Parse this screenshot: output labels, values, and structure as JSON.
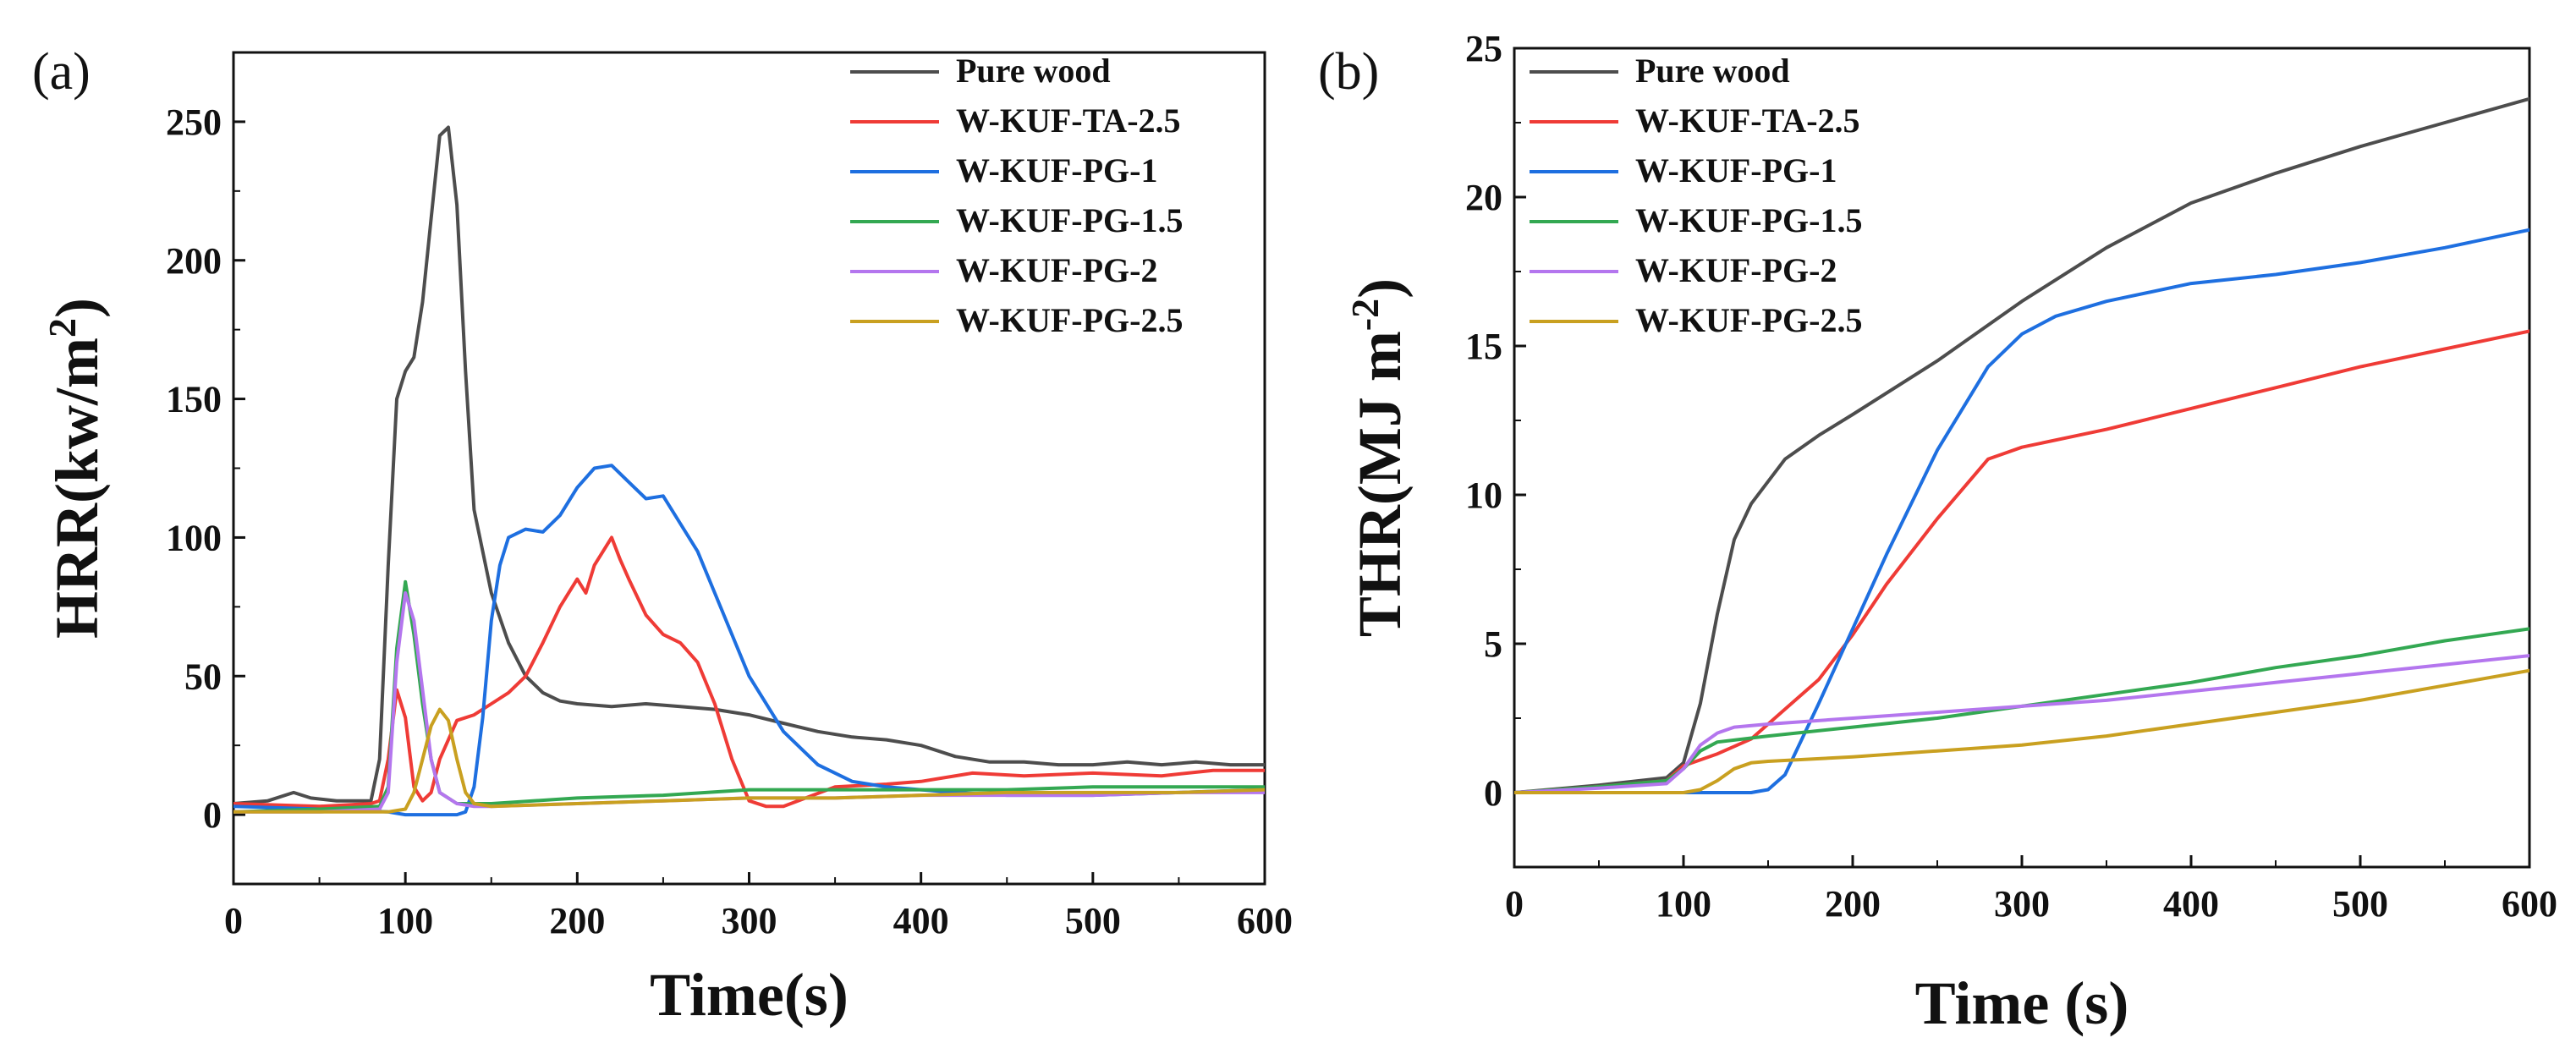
{
  "figure": {
    "panels": [
      "(a)",
      "(b)"
    ]
  },
  "chart_data": [
    {
      "type": "line",
      "panel_label": "(a)",
      "title": "",
      "xlabel": "Time(s)",
      "ylabel": "HRR(kw/m",
      "ylabel_sup": "2",
      "ylabel_end": ")",
      "xlim": [
        0,
        600
      ],
      "ylim": [
        -25,
        275
      ],
      "xticks": [
        0,
        100,
        200,
        300,
        400,
        500,
        600
      ],
      "yticks": [
        0,
        50,
        100,
        150,
        200,
        250
      ],
      "legend_position": "top-right",
      "series": [
        {
          "name": "Pure wood",
          "color": "#4d4d4d",
          "x": [
            0,
            20,
            35,
            45,
            60,
            80,
            85,
            90,
            95,
            100,
            105,
            110,
            115,
            120,
            125,
            130,
            135,
            140,
            150,
            160,
            170,
            180,
            190,
            200,
            220,
            240,
            260,
            280,
            300,
            320,
            340,
            360,
            380,
            400,
            420,
            440,
            460,
            480,
            500,
            520,
            540,
            560,
            580,
            600
          ],
          "y": [
            4,
            5,
            8,
            6,
            5,
            5,
            20,
            90,
            150,
            160,
            165,
            185,
            215,
            245,
            248,
            220,
            160,
            110,
            80,
            62,
            50,
            44,
            41,
            40,
            39,
            40,
            39,
            38,
            36,
            33,
            30,
            28,
            27,
            25,
            21,
            19,
            19,
            18,
            18,
            19,
            18,
            19,
            18,
            18
          ]
        },
        {
          "name": "W-KUF-TA-2.5",
          "color": "#ef3b36",
          "x": [
            0,
            50,
            80,
            85,
            90,
            95,
            100,
            105,
            110,
            115,
            120,
            130,
            140,
            150,
            160,
            170,
            180,
            190,
            200,
            205,
            210,
            215,
            220,
            225,
            230,
            240,
            250,
            260,
            270,
            280,
            290,
            300,
            310,
            320,
            350,
            380,
            400,
            430,
            460,
            500,
            540,
            570,
            600
          ],
          "y": [
            4,
            3,
            4,
            5,
            20,
            45,
            35,
            10,
            5,
            8,
            20,
            34,
            36,
            40,
            44,
            50,
            62,
            75,
            85,
            80,
            90,
            95,
            100,
            92,
            85,
            72,
            65,
            62,
            55,
            40,
            20,
            5,
            3,
            3,
            10,
            11,
            12,
            15,
            14,
            15,
            14,
            16,
            16
          ]
        },
        {
          "name": "W-KUF-PG-1",
          "color": "#1e6fe0",
          "x": [
            0,
            50,
            90,
            100,
            110,
            120,
            130,
            135,
            140,
            145,
            150,
            155,
            160,
            170,
            180,
            190,
            200,
            210,
            220,
            230,
            240,
            250,
            260,
            270,
            280,
            290,
            300,
            320,
            340,
            360,
            380,
            400,
            420,
            450,
            500,
            550,
            600
          ],
          "y": [
            3,
            2,
            1,
            0,
            0,
            0,
            0,
            1,
            10,
            35,
            70,
            90,
            100,
            103,
            102,
            108,
            118,
            125,
            126,
            120,
            114,
            115,
            105,
            95,
            80,
            65,
            50,
            30,
            18,
            12,
            10,
            9,
            8,
            7,
            7,
            8,
            9
          ]
        },
        {
          "name": "W-KUF-PG-1.5",
          "color": "#33a852",
          "x": [
            0,
            50,
            85,
            90,
            95,
            100,
            105,
            110,
            115,
            120,
            130,
            140,
            150,
            200,
            250,
            300,
            350,
            400,
            450,
            500,
            550,
            600
          ],
          "y": [
            1,
            2,
            3,
            10,
            60,
            84,
            65,
            40,
            20,
            8,
            4,
            4,
            4,
            6,
            7,
            9,
            9,
            9,
            9,
            10,
            10,
            10
          ]
        },
        {
          "name": "W-KUF-PG-2",
          "color": "#b476ee",
          "x": [
            0,
            50,
            85,
            90,
            95,
            100,
            105,
            110,
            115,
            120,
            130,
            140,
            150,
            200,
            250,
            300,
            350,
            400,
            450,
            500,
            550,
            600
          ],
          "y": [
            1,
            1,
            2,
            8,
            55,
            80,
            70,
            45,
            20,
            8,
            4,
            3,
            3,
            4,
            5,
            6,
            6,
            7,
            7,
            7,
            8,
            8
          ]
        },
        {
          "name": "W-KUF-PG-2.5",
          "color": "#c9a020",
          "x": [
            0,
            50,
            90,
            100,
            105,
            110,
            115,
            120,
            125,
            130,
            135,
            140,
            150,
            200,
            250,
            300,
            350,
            400,
            450,
            500,
            550,
            600
          ],
          "y": [
            1,
            1,
            1,
            2,
            8,
            20,
            32,
            38,
            34,
            20,
            8,
            4,
            3,
            4,
            5,
            6,
            6,
            7,
            8,
            8,
            8,
            9
          ]
        }
      ]
    },
    {
      "type": "line",
      "panel_label": "(b)",
      "title": "",
      "xlabel": "Time (s)",
      "ylabel": "THR(MJ m",
      "ylabel_sup": "-2",
      "ylabel_end": ")",
      "xlim": [
        0,
        600
      ],
      "ylim": [
        -2.5,
        25
      ],
      "xticks": [
        0,
        100,
        200,
        300,
        400,
        500,
        600
      ],
      "yticks": [
        0,
        5,
        10,
        15,
        20,
        25
      ],
      "legend_position": "top-left",
      "series": [
        {
          "name": "Pure wood",
          "color": "#4d4d4d",
          "x": [
            0,
            50,
            90,
            100,
            110,
            120,
            130,
            140,
            160,
            180,
            200,
            250,
            300,
            350,
            400,
            450,
            500,
            550,
            600
          ],
          "y": [
            0,
            0.25,
            0.5,
            1,
            3,
            6,
            8.5,
            9.7,
            11.2,
            12,
            12.7,
            14.5,
            16.5,
            18.3,
            19.8,
            20.8,
            21.7,
            22.5,
            23.3
          ]
        },
        {
          "name": "W-KUF-TA-2.5",
          "color": "#ef3b36",
          "x": [
            0,
            50,
            90,
            100,
            120,
            140,
            160,
            180,
            200,
            220,
            250,
            280,
            290,
            300,
            350,
            400,
            450,
            500,
            550,
            600
          ],
          "y": [
            0,
            0.2,
            0.4,
            0.9,
            1.3,
            1.8,
            2.8,
            3.8,
            5.3,
            7,
            9.2,
            11.2,
            11.4,
            11.6,
            12.2,
            12.9,
            13.6,
            14.3,
            14.9,
            15.5
          ]
        },
        {
          "name": "W-KUF-PG-1",
          "color": "#1e6fe0",
          "x": [
            0,
            50,
            100,
            140,
            150,
            160,
            170,
            180,
            200,
            220,
            250,
            280,
            300,
            320,
            350,
            400,
            450,
            500,
            550,
            600
          ],
          "y": [
            0,
            0,
            0,
            0,
            0.1,
            0.6,
            1.8,
            3,
            5.5,
            8,
            11.5,
            14.3,
            15.4,
            16,
            16.5,
            17.1,
            17.4,
            17.8,
            18.3,
            18.9
          ]
        },
        {
          "name": "W-KUF-PG-1.5",
          "color": "#33a852",
          "x": [
            0,
            50,
            90,
            100,
            110,
            120,
            150,
            200,
            250,
            300,
            350,
            400,
            450,
            500,
            550,
            600
          ],
          "y": [
            0,
            0.2,
            0.4,
            0.8,
            1.4,
            1.7,
            1.9,
            2.2,
            2.5,
            2.9,
            3.3,
            3.7,
            4.2,
            4.6,
            5.1,
            5.5
          ]
        },
        {
          "name": "W-KUF-PG-2",
          "color": "#b476ee",
          "x": [
            0,
            50,
            90,
            100,
            110,
            120,
            130,
            150,
            200,
            250,
            300,
            350,
            400,
            450,
            500,
            550,
            600
          ],
          "y": [
            0,
            0.15,
            0.3,
            0.8,
            1.6,
            2,
            2.2,
            2.3,
            2.5,
            2.7,
            2.9,
            3.1,
            3.4,
            3.7,
            4,
            4.3,
            4.6
          ]
        },
        {
          "name": "W-KUF-PG-2.5",
          "color": "#c9a020",
          "x": [
            0,
            50,
            100,
            110,
            120,
            130,
            140,
            150,
            200,
            250,
            300,
            350,
            400,
            450,
            500,
            550,
            600
          ],
          "y": [
            0,
            0,
            0,
            0.1,
            0.4,
            0.8,
            1,
            1.05,
            1.2,
            1.4,
            1.6,
            1.9,
            2.3,
            2.7,
            3.1,
            3.6,
            4.1
          ]
        }
      ]
    }
  ]
}
